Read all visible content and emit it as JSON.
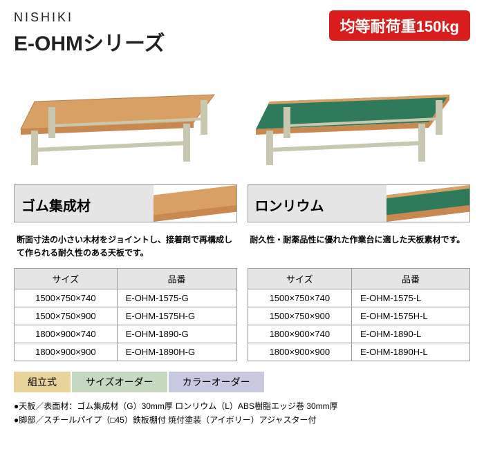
{
  "header": {
    "brand": "NISHIKI",
    "series": "E-OHMシリーズ",
    "badge": "均等耐荷重150kg",
    "badge_bg": "#d91c1c",
    "badge_color": "#ffffff"
  },
  "table_images": {
    "left": {
      "top_color": "#d9a066",
      "frame_color": "#c8c8b0"
    },
    "right": {
      "top_color": "#2e7a5a",
      "edge_color": "#d9a066",
      "frame_color": "#c8c8b0"
    }
  },
  "left_panel": {
    "title": "ゴム集成材",
    "swatch_color": "#d9a066",
    "description": "断面寸法の小さい木材をジョイントし、接着剤で再構成して作られる耐久性のある天板です。",
    "columns": [
      "サイズ",
      "品番"
    ],
    "rows": [
      [
        "1500×750×740",
        "E-OHM-1575-G"
      ],
      [
        "1500×750×900",
        "E-OHM-1575H-G"
      ],
      [
        "1800×900×740",
        "E-OHM-1890-G"
      ],
      [
        "1800×900×900",
        "E-OHM-1890H-G"
      ]
    ]
  },
  "right_panel": {
    "title": "ロンリウム",
    "swatch_top": "#2e7a5a",
    "swatch_edge": "#d9a066",
    "description": "耐久性・耐薬品性に優れた作業台に適した天板素材です。",
    "columns": [
      "サイズ",
      "品番"
    ],
    "rows": [
      [
        "1500×750×740",
        "E-OHM-1575-L"
      ],
      [
        "1500×750×900",
        "E-OHM-1575H-L"
      ],
      [
        "1800×900×740",
        "E-OHM-1890-L"
      ],
      [
        "1800×900×900",
        "E-OHM-1890H-L"
      ]
    ]
  },
  "tags": [
    {
      "label": "組立式",
      "bg": "#e8d49a"
    },
    {
      "label": "サイズオーダー",
      "bg": "#c5d8c0"
    },
    {
      "label": "カラーオーダー",
      "bg": "#c8c8e0"
    }
  ],
  "notes": [
    "●天板／表面材：ゴム集成材（G）30mm厚 ロンリウム（L）ABS樹脂エッジ巻 30mm厚",
    "●脚部／スチールパイプ（□45）鉄板棚付 焼付塗装（アイボリー）アジャスター付"
  ]
}
